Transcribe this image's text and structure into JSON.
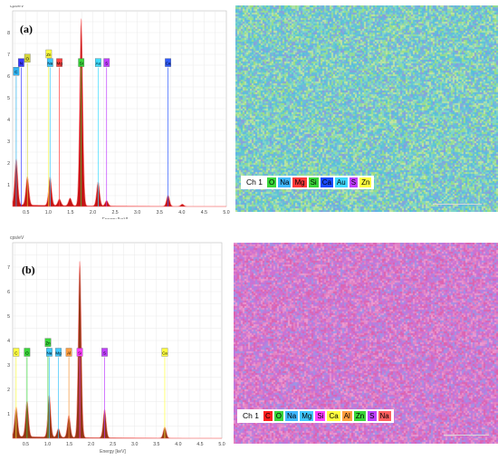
{
  "chart_data": [
    {
      "type": "line",
      "panel_label": "(a)",
      "ylabel": "cps/eV",
      "xlabel": "Energy [keV]",
      "xlim": [
        0.2,
        5.0
      ],
      "ylim": [
        0,
        9
      ],
      "x_ticks": [
        "0.5",
        "1.0",
        "1.5",
        "2.0",
        "2.5",
        "3.0",
        "3.5",
        "4.0",
        "4.5",
        "5.0"
      ],
      "y_ticks": [
        "1",
        "2",
        "3",
        "4",
        "5",
        "6",
        "7",
        "8"
      ],
      "peaks": [
        {
          "x": 0.28,
          "y": 2.1
        },
        {
          "x": 0.53,
          "y": 1.3
        },
        {
          "x": 1.04,
          "y": 1.3
        },
        {
          "x": 1.25,
          "y": 0.3
        },
        {
          "x": 1.49,
          "y": 0.35
        },
        {
          "x": 1.74,
          "y": 8.6
        },
        {
          "x": 2.12,
          "y": 1.1
        },
        {
          "x": 2.31,
          "y": 0.25
        },
        {
          "x": 3.69,
          "y": 0.5
        },
        {
          "x": 4.01,
          "y": 0.1
        }
      ],
      "element_markers": [
        {
          "label": "C",
          "x": 0.28,
          "level": 6.2,
          "color": "#2fb3f0"
        },
        {
          "label": "N",
          "x": 0.39,
          "level": 6.6,
          "color": "#3a3aff"
        },
        {
          "label": "O",
          "x": 0.53,
          "level": 6.8,
          "color": "#d6d63a"
        },
        {
          "label": "Zn",
          "x": 1.01,
          "level": 7.0,
          "color": "#ffff40"
        },
        {
          "label": "Na",
          "x": 1.04,
          "level": 6.6,
          "color": "#40c8ff"
        },
        {
          "label": "Mg",
          "x": 1.25,
          "level": 6.6,
          "color": "#ff4040"
        },
        {
          "label": "Si",
          "x": 1.74,
          "level": 6.6,
          "color": "#3ad63a"
        },
        {
          "label": "Au",
          "x": 2.12,
          "level": 6.6,
          "color": "#3fdcff"
        },
        {
          "label": "S",
          "x": 2.31,
          "level": 6.6,
          "color": "#c040ff"
        },
        {
          "label": "Ca",
          "x": 3.69,
          "level": 6.6,
          "color": "#2f5bff"
        }
      ],
      "fill_color": "#c00000",
      "map_legend": {
        "channel": "Ch 1",
        "elements": [
          {
            "label": "O",
            "color": "#3ad63a"
          },
          {
            "label": "Na",
            "color": "#3fb8ff"
          },
          {
            "label": "Mg",
            "color": "#ff3a3a"
          },
          {
            "label": "Si",
            "color": "#3ad63a"
          },
          {
            "label": "Ca",
            "color": "#1a4bff"
          },
          {
            "label": "Au",
            "color": "#40d8ff"
          },
          {
            "label": "S",
            "color": "#c040ff"
          },
          {
            "label": "Zn",
            "color": "#ffff40"
          }
        ]
      },
      "map_palette": [
        "#7fd6c8",
        "#5fb0e8",
        "#9fe07a",
        "#4fc0d8",
        "#c8e89a",
        "#8898e0"
      ]
    },
    {
      "type": "line",
      "panel_label": "(b)",
      "ylabel": "cps/eV",
      "xlabel": "Energy [keV]",
      "xlim": [
        0.2,
        5.0
      ],
      "ylim": [
        0,
        8
      ],
      "x_ticks": [
        "0.5",
        "1.0",
        "1.5",
        "2.0",
        "2.5",
        "3.0",
        "3.5",
        "4.0",
        "4.5",
        "5.0"
      ],
      "y_ticks": [
        "1",
        "2",
        "3",
        "4",
        "5",
        "6",
        "7"
      ],
      "peaks": [
        {
          "x": 0.28,
          "y": 1.2
        },
        {
          "x": 0.53,
          "y": 1.45
        },
        {
          "x": 1.04,
          "y": 1.7
        },
        {
          "x": 1.25,
          "y": 0.35
        },
        {
          "x": 1.49,
          "y": 0.9
        },
        {
          "x": 1.74,
          "y": 7.2
        },
        {
          "x": 2.31,
          "y": 1.15
        },
        {
          "x": 3.69,
          "y": 0.45
        }
      ],
      "element_markers": [
        {
          "label": "C",
          "x": 0.28,
          "level": 3.5,
          "color": "#ffff40"
        },
        {
          "label": "O",
          "x": 0.53,
          "level": 3.5,
          "color": "#3ad63a"
        },
        {
          "label": "Zn",
          "x": 1.01,
          "level": 3.9,
          "color": "#3ad63a"
        },
        {
          "label": "Na",
          "x": 1.04,
          "level": 3.5,
          "color": "#40c8ff"
        },
        {
          "label": "Mg",
          "x": 1.25,
          "level": 3.5,
          "color": "#40c8ff"
        },
        {
          "label": "Al",
          "x": 1.49,
          "level": 3.5,
          "color": "#ff9f40"
        },
        {
          "label": "Si",
          "x": 1.74,
          "level": 3.5,
          "color": "#ff40ff"
        },
        {
          "label": "S",
          "x": 2.31,
          "level": 3.5,
          "color": "#c040ff"
        },
        {
          "label": "Ca",
          "x": 3.69,
          "level": 3.5,
          "color": "#ffff40"
        }
      ],
      "fill_color": "#8b2500",
      "map_legend": {
        "channel": "Ch 1",
        "elements": [
          {
            "label": "C",
            "color": "#ff2020"
          },
          {
            "label": "O",
            "color": "#3ad63a"
          },
          {
            "label": "Na",
            "color": "#3fb8ff"
          },
          {
            "label": "Mg",
            "color": "#40c8ff"
          },
          {
            "label": "Si",
            "color": "#ff40ff"
          },
          {
            "label": "Ca",
            "color": "#ffff40"
          },
          {
            "label": "Al",
            "color": "#ff9f40"
          },
          {
            "label": "Zn",
            "color": "#3ad63a"
          },
          {
            "label": "S",
            "color": "#c040ff"
          },
          {
            "label": "Na",
            "color": "#ff6060"
          }
        ]
      },
      "map_palette": [
        "#d070d0",
        "#e888c0",
        "#b87ae0",
        "#f0a0d0",
        "#9898e8",
        "#e060a8"
      ]
    }
  ]
}
